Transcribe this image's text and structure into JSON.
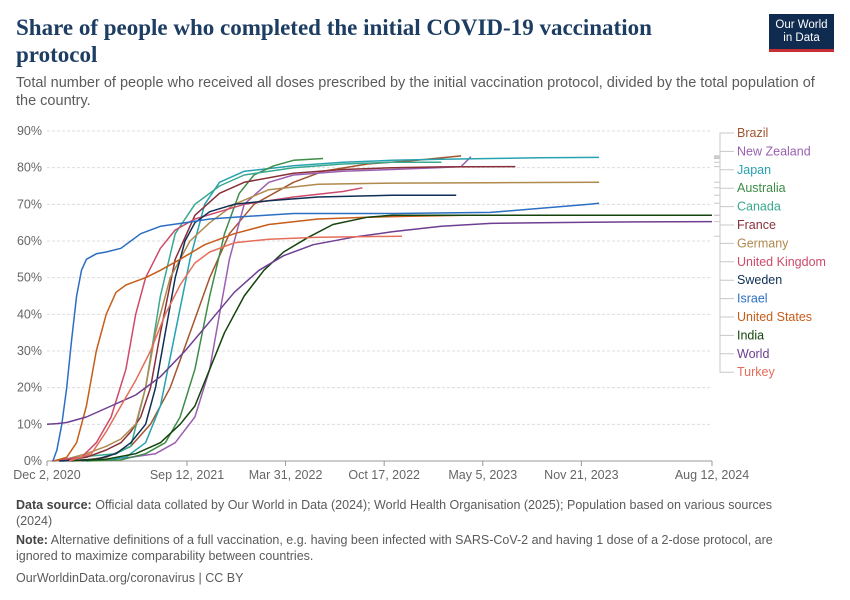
{
  "header": {
    "title": "Share of people who completed the initial COVID-19 vaccination protocol",
    "subtitle": "Total number of people who received all doses prescribed by the initial vaccination protocol, divided by the total population of the country.",
    "logo_line1": "Our World",
    "logo_line2": "in Data"
  },
  "footer": {
    "source_label": "Data source:",
    "source_text": "Official data collated by Our World in Data (2024); World Health Organisation (2025); Population based on various sources (2024)",
    "note_label": "Note:",
    "note_text": "Alternative definitions of a full vaccination, e.g. having been infected with SARS-CoV-2 and having 1 dose of a 2-dose protocol, are ignored to maximize comparability between countries.",
    "credit": "OurWorldinData.org/coronavirus | CC BY"
  },
  "colors": {
    "logo_bg": "#0f2b4f",
    "logo_accent": "#c62d35",
    "title": "#1d3d63",
    "grid": "#dddddd"
  },
  "chart_data": {
    "type": "line",
    "title": "Share of people who completed the initial COVID-19 vaccination protocol",
    "xlabel": "",
    "ylabel": "",
    "x_unit": "days since Dec 2, 2020",
    "xlim": [
      0,
      1349
    ],
    "ylim": [
      0,
      90
    ],
    "y_unit": "%",
    "grid": true,
    "legend_position": "right",
    "y_ticks": [
      0,
      10,
      20,
      30,
      40,
      50,
      60,
      70,
      80,
      90
    ],
    "y_tick_labels": [
      "0%",
      "10%",
      "20%",
      "30%",
      "40%",
      "50%",
      "60%",
      "70%",
      "80%",
      "90%"
    ],
    "x_ticks": [
      0,
      284,
      484,
      684,
      884,
      1084,
      1349
    ],
    "x_tick_labels": [
      "Dec 2, 2020",
      "Sep 12, 2021",
      "Mar 31, 2022",
      "Oct 17, 2022",
      "May 5, 2023",
      "Nov 21, 2023",
      "Aug 12, 2024"
    ],
    "series": [
      {
        "name": "Brazil",
        "color": "#a2552f",
        "x": [
          30,
          80,
          120,
          170,
          210,
          250,
          290,
          330,
          370,
          420,
          500,
          560,
          650,
          750,
          840
        ],
        "y": [
          0,
          0.3,
          1,
          4,
          10,
          20,
          35,
          50,
          62,
          70,
          76,
          79,
          81,
          82,
          83.2
        ]
      },
      {
        "name": "New Zealand",
        "color": "#9a5fb1",
        "x": [
          70,
          120,
          170,
          220,
          260,
          300,
          330,
          350,
          370,
          400,
          450,
          500,
          600,
          700,
          790,
          840,
          860
        ],
        "y": [
          0,
          0.5,
          1,
          2,
          5,
          12,
          25,
          40,
          55,
          70,
          76,
          78,
          79,
          79.5,
          80,
          80.3,
          83
        ]
      },
      {
        "name": "Japan",
        "color": "#27a2b0",
        "x": [
          75,
          120,
          160,
          200,
          230,
          260,
          290,
          320,
          350,
          400,
          500,
          600,
          700,
          800,
          900,
          1000,
          1120
        ],
        "y": [
          0,
          0.3,
          1,
          5,
          15,
          35,
          55,
          70,
          76,
          79,
          80.5,
          81.5,
          82,
          82.3,
          82.5,
          82.7,
          82.8
        ]
      },
      {
        "name": "Australia",
        "color": "#3e8c48",
        "x": [
          80,
          150,
          200,
          240,
          270,
          300,
          330,
          360,
          390,
          420,
          460,
          500,
          560
        ],
        "y": [
          0,
          0.3,
          2,
          5,
          12,
          25,
          45,
          62,
          73,
          78,
          80.5,
          82,
          82.5
        ]
      },
      {
        "name": "Canada",
        "color": "#38a88e",
        "x": [
          14,
          60,
          100,
          140,
          170,
          200,
          230,
          260,
          300,
          350,
          400,
          500,
          600,
          700,
          800
        ],
        "y": [
          0,
          1,
          1.5,
          2,
          4,
          20,
          45,
          62,
          70,
          75,
          78,
          80,
          81,
          81.5,
          81.5
        ]
      },
      {
        "name": "France",
        "color": "#883039",
        "x": [
          25,
          80,
          120,
          150,
          170,
          190,
          210,
          230,
          260,
          300,
          350,
          400,
          500,
          600,
          700,
          800,
          950
        ],
        "y": [
          0,
          1,
          3,
          5,
          8,
          12,
          20,
          35,
          55,
          67,
          73,
          76,
          78.5,
          79.5,
          80,
          80.2,
          80.3
        ]
      },
      {
        "name": "Germany",
        "color": "#b0894d",
        "x": [
          25,
          80,
          120,
          150,
          180,
          200,
          220,
          250,
          290,
          330,
          380,
          450,
          550,
          700,
          900,
          1120
        ],
        "y": [
          0,
          2,
          4,
          6,
          10,
          20,
          35,
          50,
          60,
          65,
          70,
          74,
          75.5,
          75.8,
          75.9,
          76
        ]
      },
      {
        "name": "United Kingdom",
        "color": "#ce4a6b",
        "x": [
          10,
          70,
          100,
          130,
          160,
          180,
          200,
          230,
          260,
          300,
          350,
          400,
          500,
          600,
          640
        ],
        "y": [
          0,
          1,
          5,
          12,
          25,
          40,
          50,
          58,
          63,
          66,
          68,
          70,
          72,
          73.5,
          74.5
        ]
      },
      {
        "name": "Sweden",
        "color": "#0e2e55",
        "x": [
          25,
          100,
          140,
          170,
          200,
          220,
          240,
          260,
          280,
          300,
          330,
          380,
          450,
          550,
          700,
          830
        ],
        "y": [
          0,
          0.5,
          2,
          5,
          10,
          20,
          35,
          50,
          60,
          65,
          68,
          70,
          71,
          72,
          72.5,
          72.5
        ]
      },
      {
        "name": "Israel",
        "color": "#2b6ec2",
        "x": [
          12,
          20,
          30,
          40,
          50,
          60,
          70,
          80,
          100,
          120,
          150,
          190,
          230,
          280,
          330,
          380,
          500,
          700,
          900,
          1100,
          1120
        ],
        "y": [
          0,
          3,
          10,
          20,
          33,
          45,
          52,
          55,
          56.5,
          57,
          58,
          62,
          64,
          65,
          66,
          66.5,
          67.5,
          67.5,
          67.8,
          70,
          70.3
        ]
      },
      {
        "name": "United States",
        "color": "#c65d1a",
        "x": [
          14,
          40,
          60,
          80,
          100,
          120,
          140,
          160,
          180,
          200,
          230,
          270,
          320,
          380,
          450,
          550,
          650,
          750,
          850
        ],
        "y": [
          0,
          1,
          5,
          15,
          30,
          40,
          46,
          48,
          49,
          50,
          52,
          55,
          59,
          62,
          64.5,
          66,
          66.5,
          66.8,
          67
        ]
      },
      {
        "name": "India",
        "color": "#15430e",
        "x": [
          45,
          120,
          180,
          230,
          270,
          300,
          330,
          360,
          400,
          440,
          480,
          530,
          580,
          650,
          700,
          800,
          900,
          1100,
          1349
        ],
        "y": [
          0,
          0.5,
          2,
          5,
          10,
          15,
          25,
          35,
          45,
          52,
          57,
          61,
          64.5,
          66.5,
          67,
          67,
          67,
          67,
          67
        ]
      },
      {
        "name": "World",
        "color": "#6d3e91",
        "x": [
          0,
          20,
          40,
          80,
          130,
          180,
          230,
          280,
          330,
          380,
          430,
          480,
          540,
          620,
          700,
          800,
          900,
          1000,
          1100,
          1200,
          1349
        ],
        "y": [
          10,
          10.2,
          10.5,
          12,
          15,
          18,
          23,
          30,
          38,
          46,
          52,
          56,
          59,
          61,
          62.5,
          64,
          64.8,
          65,
          65.1,
          65.2,
          65.3
        ]
      },
      {
        "name": "Turkey",
        "color": "#e56e5a",
        "x": [
          45,
          90,
          120,
          150,
          180,
          210,
          240,
          270,
          300,
          330,
          380,
          450,
          550,
          650,
          720
        ],
        "y": [
          0,
          2,
          8,
          15,
          22,
          30,
          40,
          48,
          54,
          57,
          59.5,
          60.5,
          61,
          61.2,
          61.3
        ]
      }
    ]
  }
}
